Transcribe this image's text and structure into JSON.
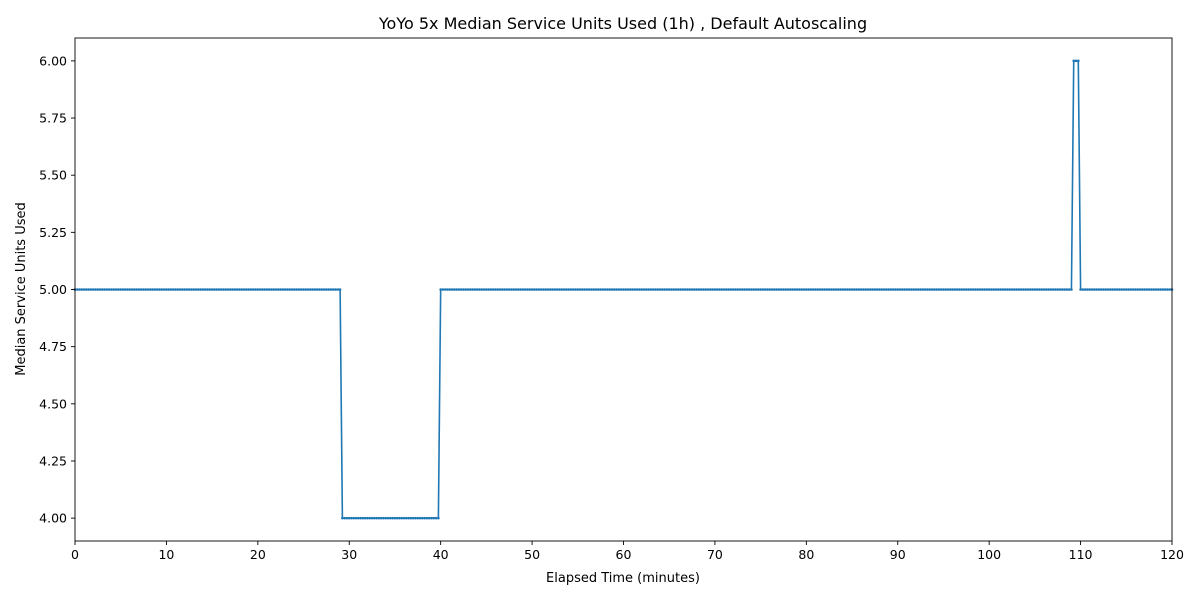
{
  "chart_data": {
    "type": "line",
    "title": "YoYo 5x Median Service Units Used (1h) , Default Autoscaling",
    "xlabel": "Elapsed Time (minutes)",
    "ylabel": "Median Service Units Used",
    "xlim": [
      0,
      120
    ],
    "ylim": [
      3.9,
      6.1
    ],
    "xticks": [
      0,
      10,
      20,
      30,
      40,
      50,
      60,
      70,
      80,
      90,
      100,
      110,
      120
    ],
    "xtick_labels": [
      "0",
      "10",
      "20",
      "30",
      "40",
      "50",
      "60",
      "70",
      "80",
      "90",
      "100",
      "110",
      "120"
    ],
    "yticks": [
      4.0,
      4.25,
      4.5,
      4.75,
      5.0,
      5.25,
      5.5,
      5.75,
      6.0
    ],
    "ytick_labels": [
      "4.00",
      "4.25",
      "4.50",
      "4.75",
      "5.00",
      "5.25",
      "5.50",
      "5.75",
      "6.00"
    ],
    "grid": false,
    "legend": "none",
    "marker": "small-dot",
    "color": "#1f77b4",
    "sample_interval_minutes": 0.25,
    "series": [
      {
        "segments": [
          {
            "x_start": 0,
            "x_end": 29.0,
            "y": 5.0
          },
          {
            "x_start": 29.25,
            "x_end": 39.75,
            "y": 4.0
          },
          {
            "x_start": 40.0,
            "x_end": 109.0,
            "y": 5.0
          },
          {
            "x_start": 109.25,
            "x_end": 109.75,
            "y": 6.0
          },
          {
            "x_start": 110.0,
            "x_end": 120.0,
            "y": 5.0
          }
        ]
      }
    ]
  }
}
